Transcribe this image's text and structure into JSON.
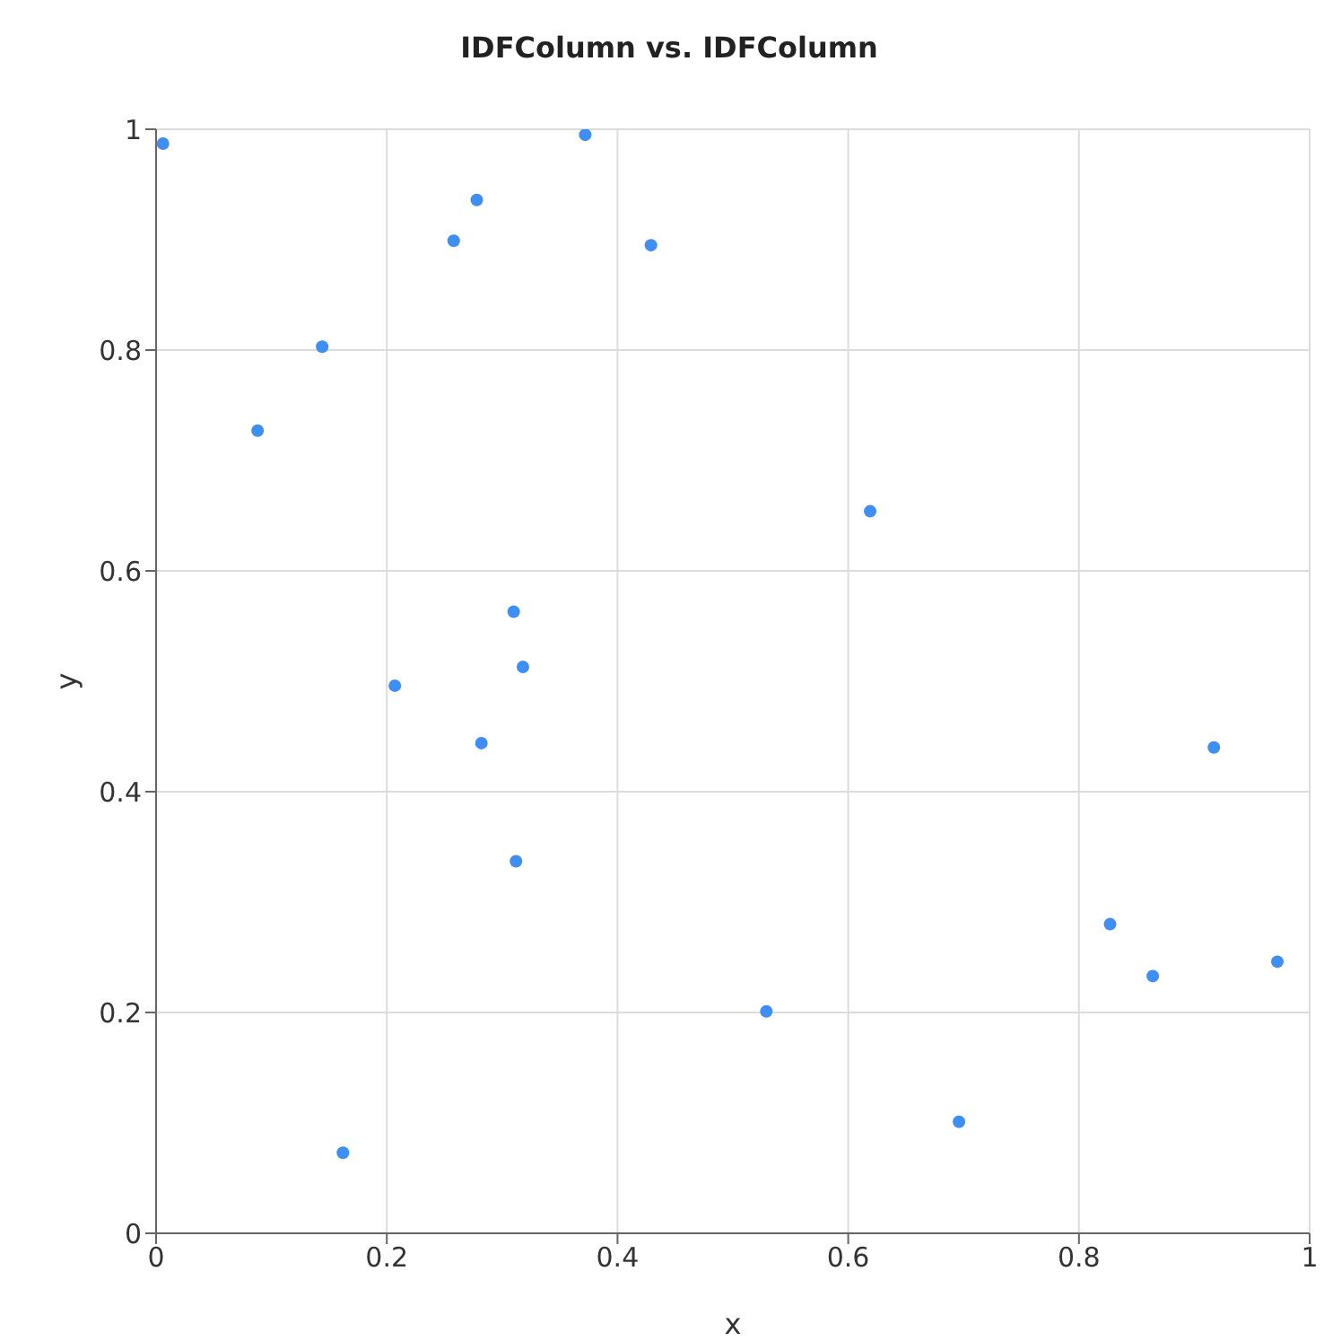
{
  "chart_data": {
    "type": "scatter",
    "title": "IDFColumn vs. IDFColumn",
    "xlabel": "x",
    "ylabel": "y",
    "x": [
      0.006,
      0.144,
      0.088,
      0.278,
      0.258,
      0.372,
      0.429,
      0.619,
      0.31,
      0.318,
      0.207,
      0.282,
      0.312,
      0.162,
      0.529,
      0.696,
      0.827,
      0.864,
      0.972,
      0.917
    ],
    "values": [
      0.987,
      0.803,
      0.727,
      0.936,
      0.899,
      0.995,
      0.895,
      0.654,
      0.563,
      0.513,
      0.496,
      0.444,
      0.337,
      0.073,
      0.201,
      0.101,
      0.28,
      0.233,
      0.246,
      0.44
    ],
    "color": "#3f8ef2",
    "xlim": [
      0,
      1
    ],
    "ylim": [
      0,
      1
    ],
    "xticks": [
      0,
      0.2,
      0.4,
      0.6,
      0.8,
      1
    ],
    "yticks": [
      0,
      0.2,
      0.4,
      0.6,
      0.8,
      1
    ],
    "grid": true,
    "marker": "circle"
  }
}
